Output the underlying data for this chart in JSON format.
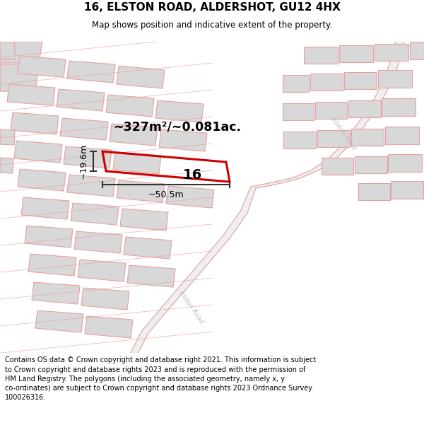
{
  "title": "16, ELSTON ROAD, ALDERSHOT, GU12 4HX",
  "subtitle": "Map shows position and indicative extent of the property.",
  "footer": "Contains OS data © Crown copyright and database right 2021. This information is subject\nto Crown copyright and database rights 2023 and is reproduced with the permission of\nHM Land Registry. The polygons (including the associated geometry, namely x, y\nco-ordinates) are subject to Crown copyright and database rights 2023 Ordnance Survey\n100026316.",
  "area_label": "~327m²/~0.081ac.",
  "width_label": "~50.5m",
  "height_label": "~19.6m",
  "property_number": "16",
  "map_bg": "#ffffff",
  "building_fill": "#d8d8d8",
  "building_stroke": "#e8a0a0",
  "road_stroke": "#e8a0a0",
  "property_stroke": "#cc0000",
  "dim_color": "#333333",
  "title_color": "#000000",
  "footer_color": "#000000",
  "road_label_color": "#bbbbbb"
}
